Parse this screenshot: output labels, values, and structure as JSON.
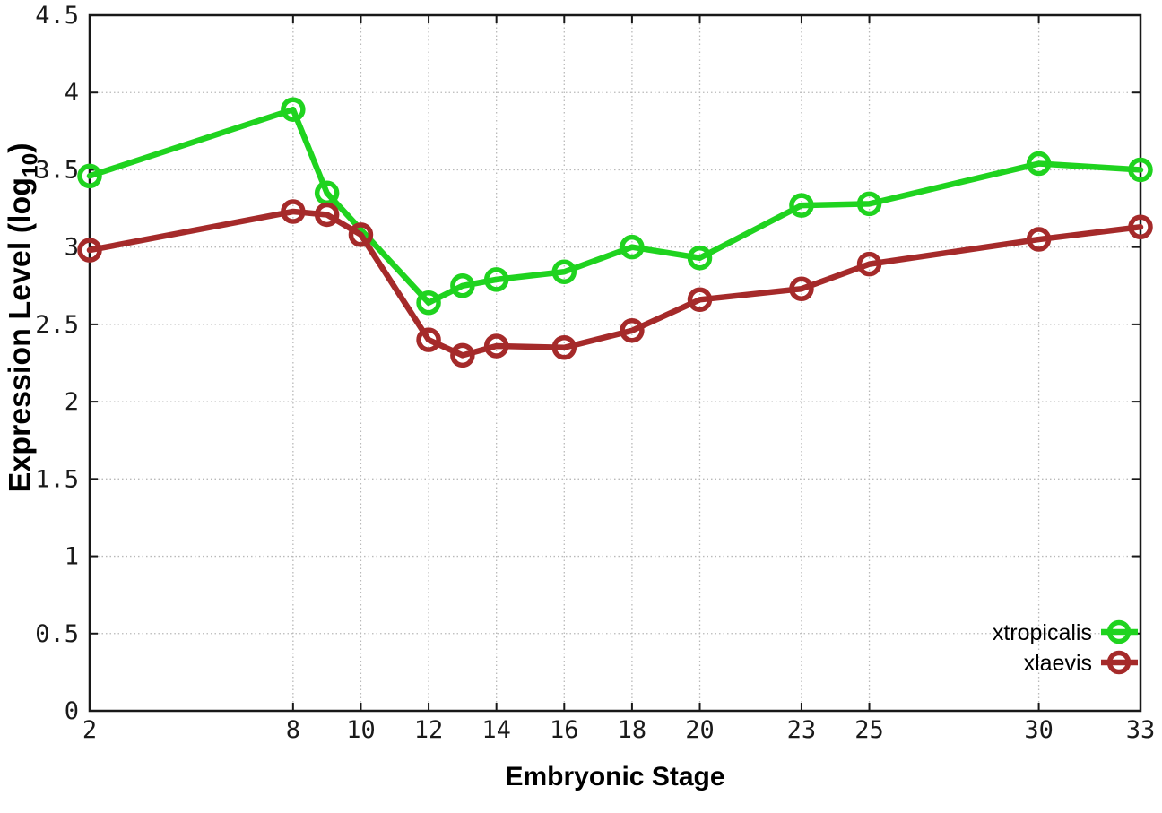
{
  "figure": {
    "background": "#ffffff",
    "border_color": "#181818",
    "grid_color": "#b9b9b9",
    "tick_label_color": "#1a1a1a"
  },
  "chart_data": {
    "type": "line",
    "title": "",
    "xlabel": "Embryonic Stage",
    "ylabel": "Expression Level (log10)",
    "ylabel_parts": {
      "prefix": "Expression Level (log",
      "sub": "10",
      "suffix": ")"
    },
    "xlim": [
      2,
      33
    ],
    "ylim": [
      0,
      4.5
    ],
    "x_ticks": [
      2,
      8,
      10,
      12,
      14,
      16,
      18,
      20,
      23,
      25,
      30,
      33
    ],
    "x_tick_labels": [
      "2",
      "8",
      "10",
      "12",
      "14",
      "16",
      "18",
      "20",
      "23",
      "25",
      "30",
      "33"
    ],
    "y_ticks": [
      0,
      0.5,
      1,
      1.5,
      2,
      2.5,
      3,
      3.5,
      4,
      4.5
    ],
    "y_tick_labels": [
      "0",
      "0.5",
      "1",
      "1.5",
      "2",
      "2.5",
      "3",
      "3.5",
      "4",
      "4.5"
    ],
    "grid": true,
    "legend_position": "inside-bottom-right",
    "series": [
      {
        "name": "xtropicalis",
        "color": "#1fd31f",
        "x": [
          2,
          8,
          9,
          12,
          13,
          14,
          16,
          18,
          20,
          23,
          25,
          30,
          33
        ],
        "y": [
          3.46,
          3.89,
          3.35,
          2.64,
          2.75,
          2.79,
          2.84,
          3.0,
          2.93,
          3.27,
          3.28,
          3.54,
          3.5
        ]
      },
      {
        "name": "xlaevis",
        "color": "#a52a2a",
        "x": [
          2,
          8,
          9,
          10,
          12,
          13,
          14,
          16,
          18,
          20,
          23,
          25,
          30,
          33
        ],
        "y": [
          2.98,
          3.23,
          3.21,
          3.08,
          2.4,
          2.3,
          2.36,
          2.35,
          2.46,
          2.66,
          2.73,
          2.89,
          3.05,
          3.13
        ]
      }
    ]
  }
}
